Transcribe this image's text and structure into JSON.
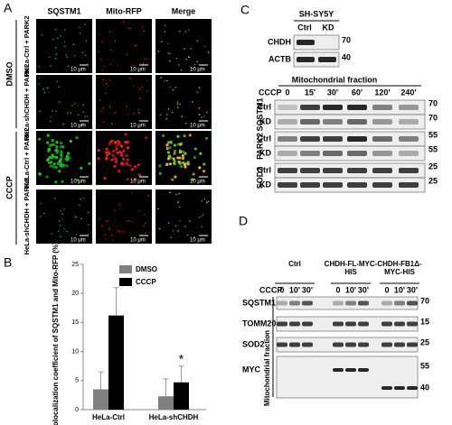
{
  "panel_a": {
    "label": "A",
    "columns": [
      "SQSTM1",
      "Mito-RFP",
      "Merge"
    ],
    "treatments": [
      "DMSO",
      "CCCP"
    ],
    "rows": [
      "HeLa-Ctrl + PARK2",
      "HeLa-shCHDH + PARK2",
      "HeLa-Ctrl + PARK2",
      "HeLa-shCHDH + PARK2"
    ],
    "scale_bar": "10 μm"
  },
  "panel_b": {
    "label": "B",
    "type": "bar",
    "y_label": "Colocalization coefficient of SQSTM1 and Mito-RFP (%)",
    "categories": [
      "HeLa-Ctrl",
      "HeLa-shCHDH"
    ],
    "series": [
      {
        "name": "DMSO",
        "color": "#808080",
        "values": [
          3.5,
          2.3
        ],
        "errors": [
          3,
          3
        ]
      },
      {
        "name": "CCCP",
        "color": "#000000",
        "values": [
          16.2,
          4.7
        ],
        "errors": [
          4.8,
          2.8
        ]
      }
    ],
    "ylim": [
      0,
      25
    ],
    "yticks": [
      0,
      5,
      10,
      15,
      20,
      25
    ],
    "annotation": "*"
  },
  "panel_c": {
    "label": "C",
    "cell_line": "SH-SY5Y",
    "top_lanes": [
      "Ctrl",
      "KD"
    ],
    "top_blots": [
      {
        "name": "CHDH",
        "marker": "70"
      },
      {
        "name": "ACTB",
        "marker": "40"
      }
    ],
    "fraction": "Mitochondrial fraction",
    "treatment": "CCCP",
    "times": [
      "0",
      "15'",
      "30'",
      "60'",
      "120'",
      "240'"
    ],
    "groups": [
      {
        "name": "SQSTM1",
        "rows": [
          "Ctrl",
          "KD"
        ],
        "markers": [
          "70",
          "70"
        ]
      },
      {
        "name": "PARK2",
        "rows": [
          "Ctrl",
          "KD"
        ],
        "markers": [
          "55",
          "55"
        ]
      },
      {
        "name": "SOD2",
        "rows": [
          "Ctrl",
          "KD"
        ],
        "markers": [
          "25",
          "25"
        ]
      }
    ]
  },
  "panel_d": {
    "label": "D",
    "fraction": "Mitochondrial fraction",
    "treatment": "CCCP",
    "groups": [
      "Ctrl",
      "CHDH-FL-MYC-HIS",
      "CHDH-FB1Δ-MYC-HIS"
    ],
    "times": [
      "0",
      "10'",
      "30'"
    ],
    "blots": [
      {
        "name": "SQSTM1",
        "markers": [
          "70"
        ]
      },
      {
        "name": "TOMM20",
        "markers": [
          "15"
        ]
      },
      {
        "name": "SOD2",
        "markers": [
          "25"
        ]
      },
      {
        "name": "MYC",
        "markers": [
          "55",
          "40"
        ]
      }
    ]
  }
}
